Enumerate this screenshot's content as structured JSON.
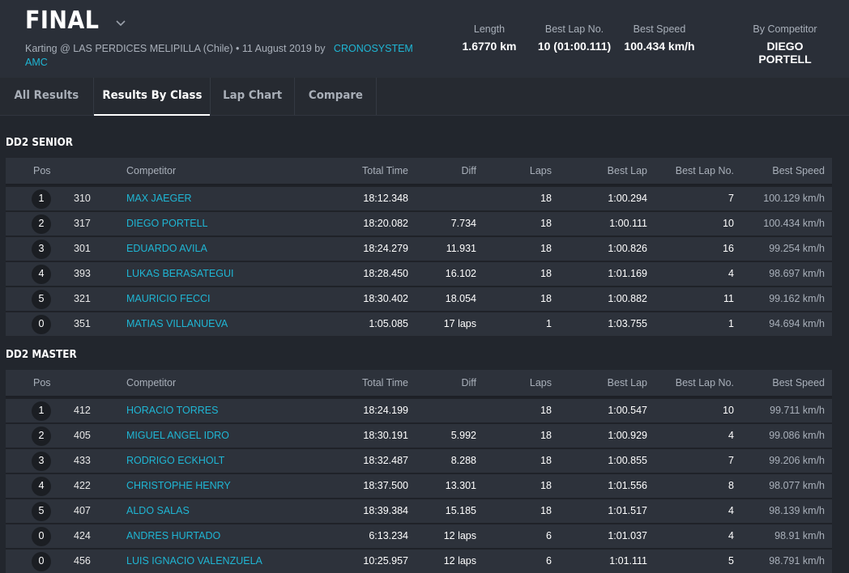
{
  "header": {
    "title": "FINAL",
    "subtitle_prefix": "Karting @ LAS PERDICES MELIPILLA (Chile) • 11 August 2019 by",
    "subtitle_link_1": "CRONOSYSTEM",
    "subtitle_link_2": "AMC",
    "stats": [
      {
        "label": "Length",
        "value": "1.6770 km"
      },
      {
        "label": "Best Lap No.",
        "value": "10 (01:00.111)"
      },
      {
        "label": "Best Speed",
        "value": "100.434 km/h"
      },
      {
        "label": "By Competitor",
        "value": "DIEGO PORTELL"
      }
    ]
  },
  "tabs": [
    {
      "label": "All Results",
      "active": false
    },
    {
      "label": "Results By Class",
      "active": true
    },
    {
      "label": "Lap Chart",
      "active": false
    },
    {
      "label": "Compare",
      "active": false
    }
  ],
  "columns": {
    "pos": "Pos",
    "competitor": "Competitor",
    "total": "Total Time",
    "diff": "Diff",
    "laps": "Laps",
    "best": "Best Lap",
    "bestno": "Best Lap No.",
    "speed": "Best Speed"
  },
  "classes": [
    {
      "name": "DD2 SENIOR",
      "rows": [
        {
          "pos": "1",
          "num": "310",
          "name": "MAX JAEGER",
          "total": "18:12.348",
          "diff": "",
          "laps": "18",
          "best": "1:00.294",
          "bestno": "7",
          "speed": "100.129 km/h"
        },
        {
          "pos": "2",
          "num": "317",
          "name": "DIEGO PORTELL",
          "total": "18:20.082",
          "diff": "7.734",
          "laps": "18",
          "best": "1:00.111",
          "bestno": "10",
          "speed": "100.434 km/h"
        },
        {
          "pos": "3",
          "num": "301",
          "name": "EDUARDO AVILA",
          "total": "18:24.279",
          "diff": "11.931",
          "laps": "18",
          "best": "1:00.826",
          "bestno": "16",
          "speed": "99.254 km/h"
        },
        {
          "pos": "4",
          "num": "393",
          "name": "LUKAS BERASATEGUI",
          "total": "18:28.450",
          "diff": "16.102",
          "laps": "18",
          "best": "1:01.169",
          "bestno": "4",
          "speed": "98.697 km/h"
        },
        {
          "pos": "5",
          "num": "321",
          "name": "MAURICIO FECCI",
          "total": "18:30.402",
          "diff": "18.054",
          "laps": "18",
          "best": "1:00.882",
          "bestno": "11",
          "speed": "99.162 km/h"
        },
        {
          "pos": "0",
          "num": "351",
          "name": "MATIAS VILLANUEVA",
          "total": "1:05.085",
          "diff": "17 laps",
          "laps": "1",
          "best": "1:03.755",
          "bestno": "1",
          "speed": "94.694 km/h"
        }
      ]
    },
    {
      "name": "DD2 MASTER",
      "rows": [
        {
          "pos": "1",
          "num": "412",
          "name": "HORACIO TORRES",
          "total": "18:24.199",
          "diff": "",
          "laps": "18",
          "best": "1:00.547",
          "bestno": "10",
          "speed": "99.711 km/h"
        },
        {
          "pos": "2",
          "num": "405",
          "name": "MIGUEL ANGEL IDRO",
          "total": "18:30.191",
          "diff": "5.992",
          "laps": "18",
          "best": "1:00.929",
          "bestno": "4",
          "speed": "99.086 km/h"
        },
        {
          "pos": "3",
          "num": "433",
          "name": "RODRIGO ECKHOLT",
          "total": "18:32.487",
          "diff": "8.288",
          "laps": "18",
          "best": "1:00.855",
          "bestno": "7",
          "speed": "99.206 km/h"
        },
        {
          "pos": "4",
          "num": "422",
          "name": "CHRISTOPHE HENRY",
          "total": "18:37.500",
          "diff": "13.301",
          "laps": "18",
          "best": "1:01.556",
          "bestno": "8",
          "speed": "98.077 km/h"
        },
        {
          "pos": "5",
          "num": "407",
          "name": "ALDO SALAS",
          "total": "18:39.384",
          "diff": "15.185",
          "laps": "18",
          "best": "1:01.517",
          "bestno": "4",
          "speed": "98.139 km/h"
        },
        {
          "pos": "0",
          "num": "424",
          "name": "ANDRES HURTADO",
          "total": "6:13.234",
          "diff": "12 laps",
          "laps": "6",
          "best": "1:01.037",
          "bestno": "4",
          "speed": "98.91 km/h"
        },
        {
          "pos": "0",
          "num": "456",
          "name": "LUIS IGNACIO VALENZUELA",
          "total": "10:25.957",
          "diff": "12 laps",
          "laps": "6",
          "best": "1:01.111",
          "bestno": "5",
          "speed": "98.791 km/h"
        }
      ]
    }
  ]
}
